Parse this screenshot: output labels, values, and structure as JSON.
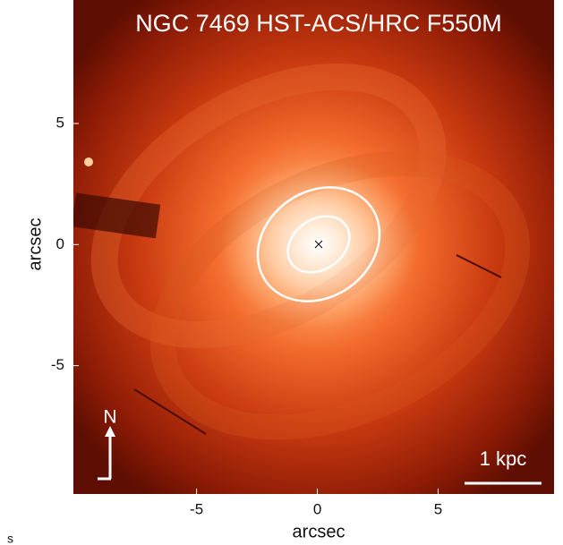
{
  "chart_data": {
    "type": "image",
    "title": "NGC 7469 HST-ACS/HRC F550M",
    "x_label": "arcsec",
    "y_label": "arcsec",
    "xlim": [
      -10.1,
      9.8
    ],
    "ylim": [
      -10.3,
      10.1
    ],
    "xticks": [
      -5,
      0,
      5
    ],
    "yticks": [
      -5,
      0,
      5
    ],
    "compass_label": "N",
    "scale_bar_label": "1 kpc"
  },
  "caption_fragment": "s"
}
